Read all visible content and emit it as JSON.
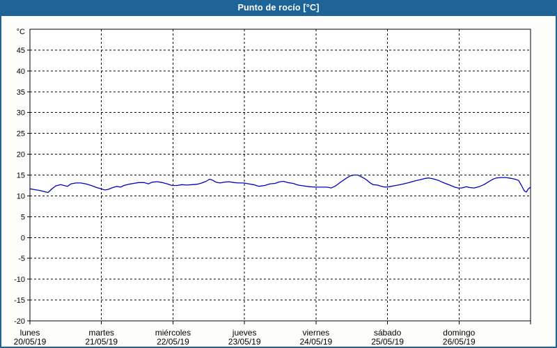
{
  "window": {
    "title": "Punto de rocío [°C]"
  },
  "colors": {
    "frame": "#1e6496",
    "title_text": "#ffffff",
    "content_bg": "#fdfefb",
    "plot_bg": "#ffffff",
    "axis": "#000000",
    "grid": "#000000",
    "series": "#0000bf",
    "label_text": "#000000"
  },
  "chart_data": {
    "type": "line",
    "title": "Punto de rocío [°C]",
    "ylabel": "°C",
    "xlabel": "",
    "ylim": [
      -20,
      50
    ],
    "yticks": [
      45,
      40,
      35,
      30,
      25,
      20,
      15,
      10,
      5,
      0,
      -5,
      -10,
      -15,
      -20
    ],
    "xlim_days": [
      0,
      7
    ],
    "grid": true,
    "legend": "none",
    "x_days": [
      {
        "name": "lunes",
        "date": "20/05/19"
      },
      {
        "name": "martes",
        "date": "21/05/19"
      },
      {
        "name": "miércoles",
        "date": "22/05/19"
      },
      {
        "name": "jueves",
        "date": "23/05/19"
      },
      {
        "name": "viernes",
        "date": "24/05/19"
      },
      {
        "name": "sábado",
        "date": "25/05/19"
      },
      {
        "name": "domingo",
        "date": "26/05/19"
      }
    ],
    "series": [
      {
        "name": "Punto de rocío",
        "color": "#0000bf",
        "points": [
          [
            0.0,
            11.7
          ],
          [
            0.068,
            11.5
          ],
          [
            0.136,
            11.3
          ],
          [
            0.204,
            11.0
          ],
          [
            0.253,
            10.8
          ],
          [
            0.302,
            11.6
          ],
          [
            0.36,
            12.4
          ],
          [
            0.428,
            12.7
          ],
          [
            0.477,
            12.5
          ],
          [
            0.526,
            12.3
          ],
          [
            0.574,
            12.9
          ],
          [
            0.643,
            13.1
          ],
          [
            0.711,
            13.1
          ],
          [
            0.779,
            12.9
          ],
          [
            0.857,
            12.5
          ],
          [
            0.935,
            12.0
          ],
          [
            0.993,
            11.7
          ],
          [
            1.051,
            11.4
          ],
          [
            1.1,
            11.6
          ],
          [
            1.158,
            12.0
          ],
          [
            1.217,
            12.3
          ],
          [
            1.266,
            12.1
          ],
          [
            1.314,
            12.5
          ],
          [
            1.382,
            12.8
          ],
          [
            1.451,
            13.0
          ],
          [
            1.519,
            13.2
          ],
          [
            1.597,
            13.2
          ],
          [
            1.655,
            12.9
          ],
          [
            1.713,
            13.3
          ],
          [
            1.782,
            13.4
          ],
          [
            1.85,
            13.2
          ],
          [
            1.918,
            12.9
          ],
          [
            1.986,
            12.5
          ],
          [
            2.054,
            12.5
          ],
          [
            2.122,
            12.7
          ],
          [
            2.2,
            12.6
          ],
          [
            2.268,
            12.7
          ],
          [
            2.337,
            12.8
          ],
          [
            2.405,
            13.1
          ],
          [
            2.463,
            13.5
          ],
          [
            2.512,
            14.0
          ],
          [
            2.551,
            13.8
          ],
          [
            2.6,
            13.3
          ],
          [
            2.658,
            13.1
          ],
          [
            2.716,
            13.3
          ],
          [
            2.784,
            13.4
          ],
          [
            2.853,
            13.2
          ],
          [
            2.921,
            13.1
          ],
          [
            2.989,
            13.1
          ],
          [
            3.057,
            12.9
          ],
          [
            3.125,
            12.7
          ],
          [
            3.203,
            12.3
          ],
          [
            3.281,
            12.5
          ],
          [
            3.359,
            12.9
          ],
          [
            3.427,
            13.0
          ],
          [
            3.495,
            13.4
          ],
          [
            3.544,
            13.5
          ],
          [
            3.602,
            13.2
          ],
          [
            3.68,
            13.0
          ],
          [
            3.748,
            12.6
          ],
          [
            3.826,
            12.4
          ],
          [
            3.914,
            12.2
          ],
          [
            4.001,
            12.1
          ],
          [
            4.079,
            12.1
          ],
          [
            4.157,
            12.1
          ],
          [
            4.215,
            11.9
          ],
          [
            4.274,
            12.4
          ],
          [
            4.352,
            13.4
          ],
          [
            4.42,
            14.2
          ],
          [
            4.478,
            14.8
          ],
          [
            4.527,
            15.0
          ],
          [
            4.585,
            15.0
          ],
          [
            4.644,
            14.5
          ],
          [
            4.702,
            13.9
          ],
          [
            4.751,
            13.2
          ],
          [
            4.799,
            12.7
          ],
          [
            4.858,
            12.6
          ],
          [
            4.916,
            12.3
          ],
          [
            4.965,
            12.1
          ],
          [
            5.023,
            12.2
          ],
          [
            5.082,
            12.4
          ],
          [
            5.15,
            12.6
          ],
          [
            5.228,
            12.9
          ],
          [
            5.305,
            13.2
          ],
          [
            5.383,
            13.6
          ],
          [
            5.461,
            13.9
          ],
          [
            5.529,
            14.2
          ],
          [
            5.578,
            14.3
          ],
          [
            5.636,
            14.1
          ],
          [
            5.714,
            13.7
          ],
          [
            5.792,
            13.1
          ],
          [
            5.87,
            12.6
          ],
          [
            5.938,
            12.1
          ],
          [
            5.987,
            11.9
          ],
          [
            6.036,
            11.9
          ],
          [
            6.104,
            12.2
          ],
          [
            6.152,
            12.0
          ],
          [
            6.211,
            11.9
          ],
          [
            6.279,
            12.2
          ],
          [
            6.347,
            12.7
          ],
          [
            6.415,
            13.4
          ],
          [
            6.474,
            14.0
          ],
          [
            6.522,
            14.3
          ],
          [
            6.591,
            14.4
          ],
          [
            6.659,
            14.4
          ],
          [
            6.727,
            14.2
          ],
          [
            6.785,
            14.0
          ],
          [
            6.834,
            13.7
          ],
          [
            6.873,
            12.5
          ],
          [
            6.912,
            11.2
          ],
          [
            6.941,
            10.9
          ],
          [
            6.97,
            11.7
          ],
          [
            7.0,
            12.1
          ]
        ]
      }
    ]
  }
}
